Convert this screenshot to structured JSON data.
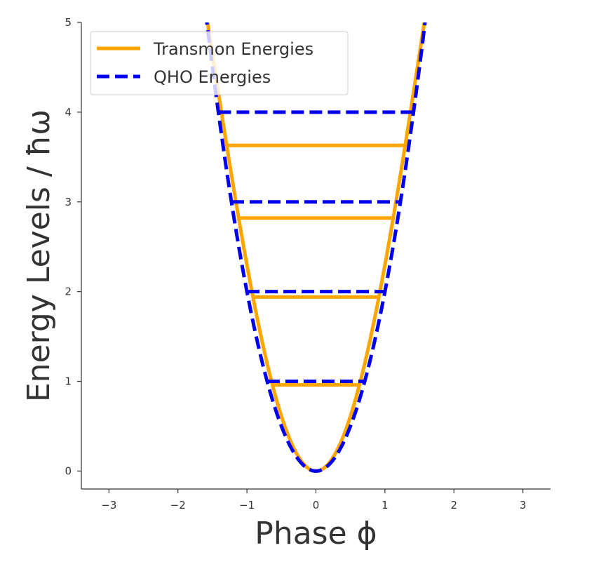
{
  "chart_data": {
    "type": "line",
    "title": "",
    "xlabel": "Phase ϕ",
    "ylabel": "Energy Levels / ħω",
    "xlim": [
      -3.4,
      3.4
    ],
    "ylim": [
      -0.2,
      5.0
    ],
    "x_ticks": [
      -3,
      -2,
      -1,
      0,
      1,
      2,
      3
    ],
    "x_tick_labels": [
      "−3",
      "−2",
      "−1",
      "0",
      "1",
      "2",
      "3"
    ],
    "y_ticks": [
      0,
      1,
      2,
      3,
      4,
      5
    ],
    "y_tick_labels": [
      "0",
      "1",
      "2",
      "3",
      "4",
      "5"
    ],
    "grid": false,
    "legend_position": "top-left",
    "series": [
      {
        "name": "Transmon Energies",
        "style": "solid",
        "color": "#FFA500",
        "potential": "cosine",
        "potential_depth": 5.0,
        "levels": [
          0.0,
          0.96,
          1.94,
          2.82,
          3.63
        ]
      },
      {
        "name": "QHO Energies",
        "style": "dashed",
        "color": "#0000EE",
        "potential": "harmonic",
        "curvature": 2.0,
        "levels": [
          0.0,
          1.0,
          2.0,
          3.0,
          4.0
        ]
      }
    ]
  }
}
